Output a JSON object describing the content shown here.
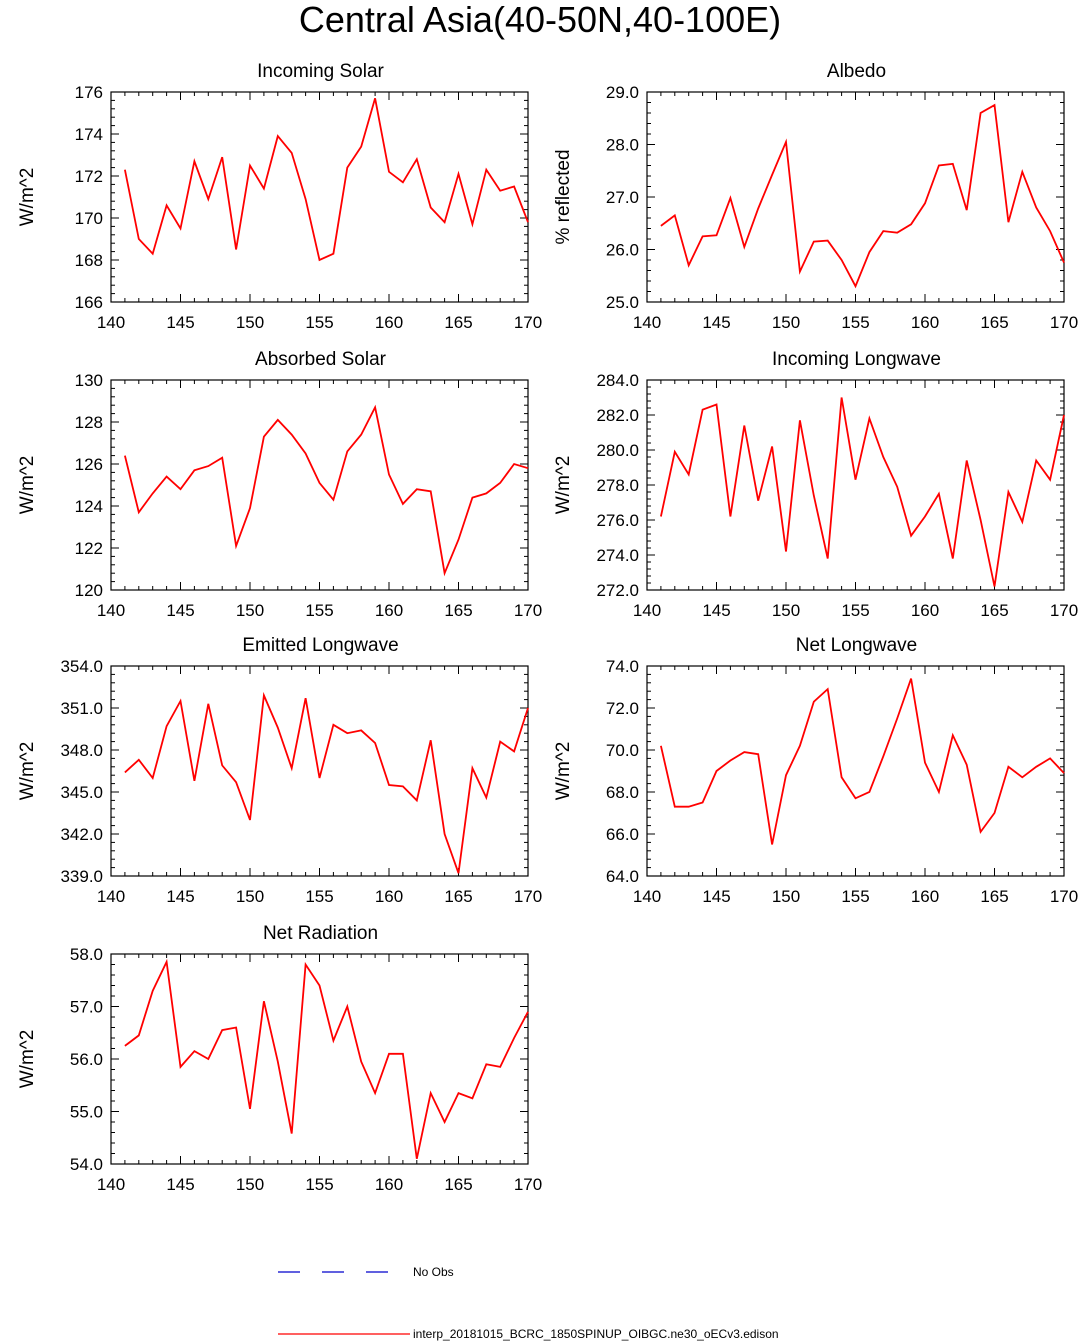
{
  "figure_title": "Central Asia(40-50N,40-100E)",
  "colors": {
    "model_line": "#ff0000",
    "obs_line": "#0000cc",
    "axes": "#000000"
  },
  "legend": {
    "obs_label": "No Obs",
    "model_label": "interp_20181015_BCRC_1850SPINUP_OIBGC.ne30_oECv3.edison"
  },
  "chart_data": [
    {
      "type": "line",
      "title": "Incoming Solar",
      "ylabel": "W/m^2",
      "xlabel": "",
      "xlim": [
        140,
        170
      ],
      "ylim": [
        166,
        176
      ],
      "xticks": [
        140,
        145,
        150,
        155,
        160,
        165,
        170
      ],
      "yticks": [
        166,
        168,
        170,
        172,
        174,
        176
      ],
      "ytick_decimals": 0,
      "x": [
        141,
        142,
        143,
        144,
        145,
        146,
        147,
        148,
        149,
        150,
        151,
        152,
        153,
        154,
        155,
        156,
        157,
        158,
        159,
        160,
        161,
        162,
        163,
        164,
        165,
        166,
        167,
        168,
        169,
        170
      ],
      "series": [
        {
          "name": "interp_20181015_BCRC_1850SPINUP_OIBGC.ne30_oECv3.edison",
          "values": [
            172.3,
            169.0,
            168.3,
            170.6,
            169.5,
            172.7,
            170.9,
            172.9,
            168.5,
            172.5,
            171.4,
            173.9,
            173.1,
            170.9,
            168.0,
            168.3,
            172.4,
            173.4,
            175.7,
            172.2,
            171.7,
            172.8,
            170.5,
            169.8,
            172.1,
            169.7,
            172.3,
            171.3,
            171.5,
            169.8
          ]
        }
      ]
    },
    {
      "type": "line",
      "title": "Albedo",
      "ylabel": "% reflected",
      "xlabel": "",
      "xlim": [
        140,
        170
      ],
      "ylim": [
        25,
        29
      ],
      "xticks": [
        140,
        145,
        150,
        155,
        160,
        165,
        170
      ],
      "yticks": [
        25,
        26,
        27,
        28,
        29
      ],
      "ytick_decimals": 1,
      "x": [
        141,
        142,
        143,
        144,
        145,
        146,
        147,
        148,
        149,
        150,
        151,
        152,
        153,
        154,
        155,
        156,
        157,
        158,
        159,
        160,
        161,
        162,
        163,
        164,
        165,
        166,
        167,
        168,
        169,
        170
      ],
      "series": [
        {
          "name": "interp_20181015_BCRC_1850SPINUP_OIBGC.ne30_oECv3.edison",
          "values": [
            26.45,
            26.65,
            25.7,
            26.25,
            26.27,
            26.98,
            26.05,
            26.78,
            27.42,
            28.05,
            25.58,
            26.15,
            26.17,
            25.8,
            25.3,
            25.95,
            26.35,
            26.32,
            26.48,
            26.88,
            27.6,
            27.63,
            26.75,
            28.6,
            28.75,
            26.52,
            27.48,
            26.8,
            26.35,
            25.75
          ]
        }
      ]
    },
    {
      "type": "line",
      "title": "Absorbed Solar",
      "ylabel": "W/m^2",
      "xlabel": "",
      "xlim": [
        140,
        170
      ],
      "ylim": [
        120,
        130
      ],
      "xticks": [
        140,
        145,
        150,
        155,
        160,
        165,
        170
      ],
      "yticks": [
        120,
        122,
        124,
        126,
        128,
        130
      ],
      "ytick_decimals": 0,
      "x": [
        141,
        142,
        143,
        144,
        145,
        146,
        147,
        148,
        149,
        150,
        151,
        152,
        153,
        154,
        155,
        156,
        157,
        158,
        159,
        160,
        161,
        162,
        163,
        164,
        165,
        166,
        167,
        168,
        169,
        170
      ],
      "series": [
        {
          "name": "interp_20181015_BCRC_1850SPINUP_OIBGC.ne30_oECv3.edison",
          "values": [
            126.4,
            123.7,
            124.6,
            125.4,
            124.8,
            125.7,
            125.9,
            126.3,
            122.1,
            123.9,
            127.3,
            128.1,
            127.4,
            126.5,
            125.1,
            124.3,
            126.6,
            127.4,
            128.7,
            125.5,
            124.1,
            124.8,
            124.7,
            120.8,
            122.4,
            124.4,
            124.6,
            125.1,
            126.0,
            125.8
          ]
        }
      ]
    },
    {
      "type": "line",
      "title": "Incoming Longwave",
      "ylabel": "W/m^2",
      "xlabel": "",
      "xlim": [
        140,
        170
      ],
      "ylim": [
        272,
        284
      ],
      "xticks": [
        140,
        145,
        150,
        155,
        160,
        165,
        170
      ],
      "yticks": [
        272,
        274,
        276,
        278,
        280,
        282,
        284
      ],
      "ytick_decimals": 1,
      "x": [
        141,
        142,
        143,
        144,
        145,
        146,
        147,
        148,
        149,
        150,
        151,
        152,
        153,
        154,
        155,
        156,
        157,
        158,
        159,
        160,
        161,
        162,
        163,
        164,
        165,
        166,
        167,
        168,
        169,
        170
      ],
      "series": [
        {
          "name": "interp_20181015_BCRC_1850SPINUP_OIBGC.ne30_oECv3.edison",
          "values": [
            276.2,
            279.9,
            278.6,
            282.3,
            282.6,
            276.2,
            281.4,
            277.1,
            280.2,
            274.2,
            281.7,
            277.4,
            273.8,
            283.0,
            278.3,
            281.8,
            279.6,
            277.9,
            275.1,
            276.2,
            277.5,
            273.8,
            279.4,
            276.0,
            272.2,
            277.6,
            275.9,
            279.4,
            278.3,
            282.0
          ]
        }
      ]
    },
    {
      "type": "line",
      "title": "Emitted Longwave",
      "ylabel": "W/m^2",
      "xlabel": "",
      "xlim": [
        140,
        170
      ],
      "ylim": [
        339,
        354
      ],
      "xticks": [
        140,
        145,
        150,
        155,
        160,
        165,
        170
      ],
      "yticks": [
        339,
        342,
        345,
        348,
        351,
        354
      ],
      "ytick_decimals": 1,
      "x": [
        141,
        142,
        143,
        144,
        145,
        146,
        147,
        148,
        149,
        150,
        151,
        152,
        153,
        154,
        155,
        156,
        157,
        158,
        159,
        160,
        161,
        162,
        163,
        164,
        165,
        166,
        167,
        168,
        169,
        170
      ],
      "series": [
        {
          "name": "interp_20181015_BCRC_1850SPINUP_OIBGC.ne30_oECv3.edison",
          "values": [
            346.4,
            347.3,
            346.0,
            349.7,
            351.5,
            345.8,
            351.3,
            346.9,
            345.7,
            343.0,
            351.9,
            349.6,
            346.7,
            351.7,
            346.0,
            349.8,
            349.2,
            349.4,
            348.5,
            345.5,
            345.4,
            344.4,
            348.7,
            342.0,
            339.2,
            346.7,
            344.6,
            348.6,
            347.9,
            351.0
          ]
        }
      ]
    },
    {
      "type": "line",
      "title": "Net Longwave",
      "ylabel": "W/m^2",
      "xlabel": "",
      "xlim": [
        140,
        170
      ],
      "ylim": [
        64,
        74
      ],
      "xticks": [
        140,
        145,
        150,
        155,
        160,
        165,
        170
      ],
      "yticks": [
        64,
        66,
        68,
        70,
        72,
        74
      ],
      "ytick_decimals": 1,
      "x": [
        141,
        142,
        143,
        144,
        145,
        146,
        147,
        148,
        149,
        150,
        151,
        152,
        153,
        154,
        155,
        156,
        157,
        158,
        159,
        160,
        161,
        162,
        163,
        164,
        165,
        166,
        167,
        168,
        169,
        170
      ],
      "series": [
        {
          "name": "interp_20181015_BCRC_1850SPINUP_OIBGC.ne30_oECv3.edison",
          "values": [
            70.2,
            67.3,
            67.3,
            67.5,
            69.0,
            69.5,
            69.9,
            69.8,
            65.5,
            68.8,
            70.2,
            72.3,
            72.9,
            68.7,
            67.7,
            68.0,
            69.7,
            71.5,
            73.4,
            69.4,
            68.0,
            70.7,
            69.3,
            66.1,
            67.0,
            69.2,
            68.7,
            69.2,
            69.6,
            68.9
          ]
        }
      ]
    },
    {
      "type": "line",
      "title": "Net Radiation",
      "ylabel": "W/m^2",
      "xlabel": "",
      "xlim": [
        140,
        170
      ],
      "ylim": [
        54,
        58
      ],
      "xticks": [
        140,
        145,
        150,
        155,
        160,
        165,
        170
      ],
      "yticks": [
        54,
        55,
        56,
        57,
        58
      ],
      "ytick_decimals": 1,
      "x": [
        141,
        142,
        143,
        144,
        145,
        146,
        147,
        148,
        149,
        150,
        151,
        152,
        153,
        154,
        155,
        156,
        157,
        158,
        159,
        160,
        161,
        162,
        163,
        164,
        165,
        166,
        167,
        168,
        169,
        170
      ],
      "series": [
        {
          "name": "interp_20181015_BCRC_1850SPINUP_OIBGC.ne30_oECv3.edison",
          "values": [
            56.25,
            56.45,
            57.3,
            57.85,
            55.85,
            56.15,
            56.0,
            56.55,
            56.6,
            55.05,
            57.1,
            55.95,
            54.58,
            57.8,
            57.4,
            56.35,
            57.0,
            55.95,
            55.35,
            56.1,
            56.1,
            54.1,
            55.35,
            54.8,
            55.35,
            55.25,
            55.9,
            55.85,
            56.4,
            56.9
          ]
        }
      ]
    }
  ]
}
